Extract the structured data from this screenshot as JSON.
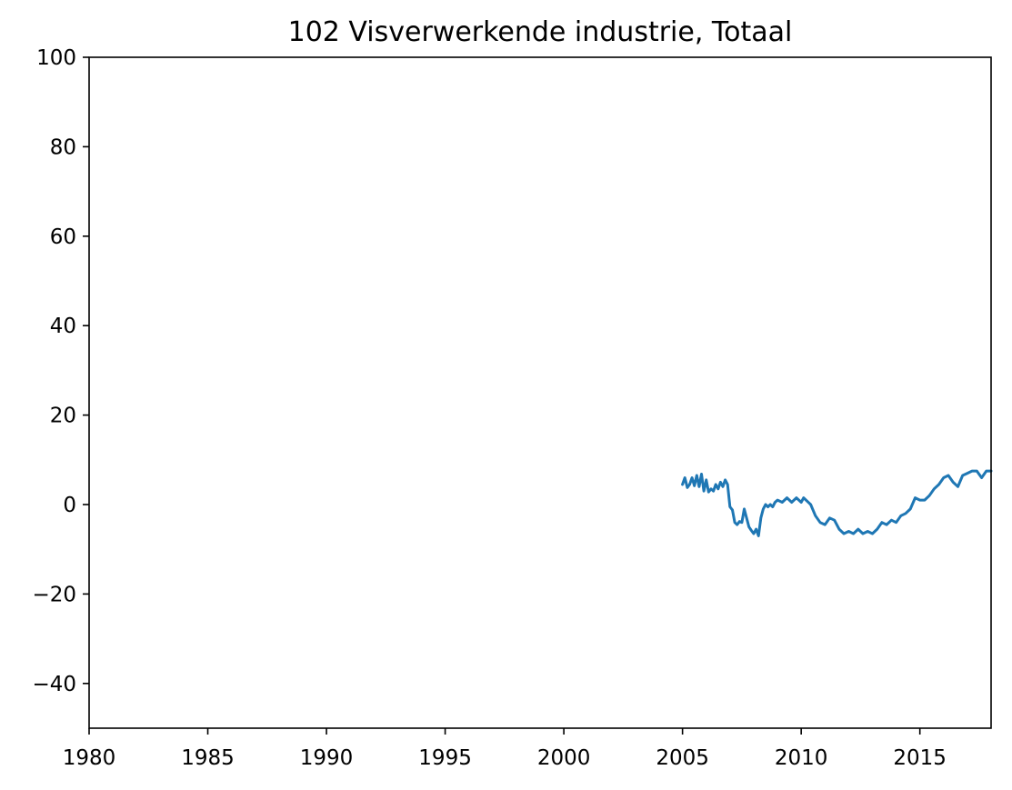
{
  "chart_data": {
    "type": "line",
    "title": "102 Visverwerkende industrie, Totaal",
    "xlabel": "",
    "ylabel": "",
    "xlim": [
      1980,
      2018
    ],
    "ylim": [
      -50,
      100
    ],
    "xticks": [
      1980,
      1985,
      1990,
      1995,
      2000,
      2005,
      2010,
      2015
    ],
    "xtick_labels": [
      "1980",
      "1985",
      "1990",
      "1995",
      "2000",
      "2005",
      "2010",
      "2015"
    ],
    "yticks": [
      -40,
      -20,
      0,
      20,
      40,
      60,
      80,
      100
    ],
    "ytick_labels": [
      "−40",
      "−20",
      "0",
      "20",
      "40",
      "60",
      "80",
      "100"
    ],
    "grid": false,
    "series": [
      {
        "color": "#1f77b4",
        "x": [
          2005.0,
          2005.1,
          2005.2,
          2005.3,
          2005.4,
          2005.5,
          2005.6,
          2005.7,
          2005.8,
          2005.9,
          2006.0,
          2006.1,
          2006.2,
          2006.3,
          2006.4,
          2006.5,
          2006.6,
          2006.7,
          2006.8,
          2006.9,
          2007.0,
          2007.1,
          2007.2,
          2007.3,
          2007.4,
          2007.5,
          2007.6,
          2007.7,
          2007.8,
          2007.9,
          2008.0,
          2008.1,
          2008.2,
          2008.3,
          2008.4,
          2008.5,
          2008.6,
          2008.7,
          2008.8,
          2008.9,
          2009.0,
          2009.2,
          2009.4,
          2009.6,
          2009.8,
          2010.0,
          2010.1,
          2010.2,
          2010.4,
          2010.6,
          2010.8,
          2011.0,
          2011.2,
          2011.4,
          2011.6,
          2011.8,
          2012.0,
          2012.2,
          2012.4,
          2012.6,
          2012.8,
          2013.0,
          2013.2,
          2013.4,
          2013.6,
          2013.8,
          2014.0,
          2014.2,
          2014.4,
          2014.6,
          2014.8,
          2015.0,
          2015.2,
          2015.4,
          2015.6,
          2015.8,
          2016.0,
          2016.2,
          2016.4,
          2016.6,
          2016.8,
          2017.0,
          2017.2,
          2017.4,
          2017.6,
          2017.8,
          2018.0
        ],
        "y": [
          4.5,
          6.0,
          3.8,
          4.5,
          6.0,
          4.2,
          6.5,
          4.0,
          6.8,
          3.0,
          5.5,
          2.8,
          3.5,
          3.0,
          4.5,
          3.5,
          5.0,
          4.0,
          5.5,
          4.5,
          -0.5,
          -1.2,
          -4.0,
          -4.5,
          -3.8,
          -4.0,
          -1.0,
          -3.0,
          -5.0,
          -5.8,
          -6.5,
          -5.5,
          -7.0,
          -3.0,
          -1.0,
          0.0,
          -0.5,
          0.0,
          -0.5,
          0.5,
          1.0,
          0.5,
          1.5,
          0.5,
          1.5,
          0.5,
          1.5,
          1.0,
          0.0,
          -2.5,
          -4.0,
          -4.5,
          -3.0,
          -3.5,
          -5.5,
          -6.5,
          -6.0,
          -6.5,
          -5.5,
          -6.5,
          -6.0,
          -6.5,
          -5.5,
          -4.0,
          -4.5,
          -3.5,
          -4.0,
          -2.5,
          -2.0,
          -1.0,
          1.5,
          1.0,
          1.0,
          2.0,
          3.5,
          4.5,
          6.0,
          6.5,
          5.0,
          4.0,
          6.5,
          7.0,
          7.5,
          7.5,
          6.0,
          7.5,
          7.5
        ]
      }
    ]
  }
}
